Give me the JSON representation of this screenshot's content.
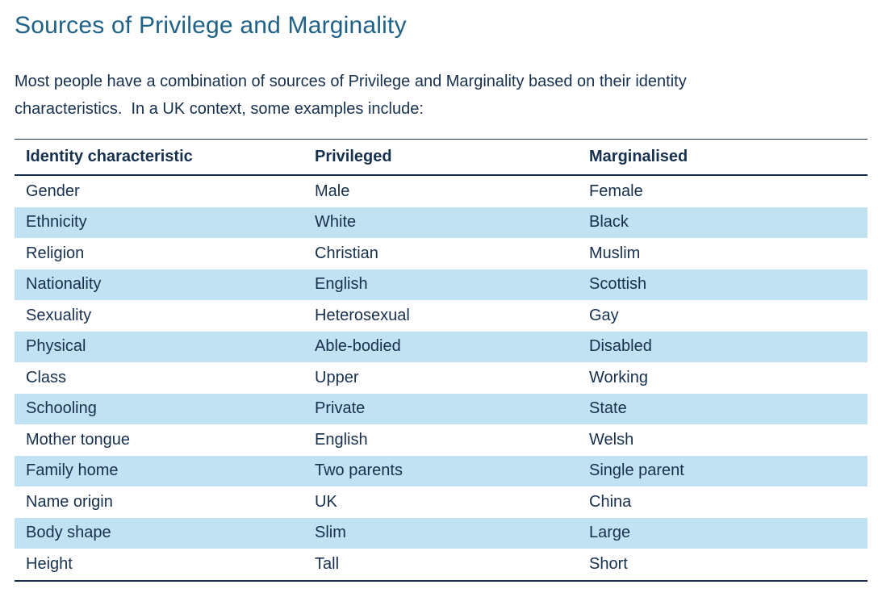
{
  "page": {
    "title": "Sources of Privilege and Marginality",
    "intro_lines": [
      "Most people have a combination of sources of Privilege and Marginality based on their identity",
      "characteristics.  In a UK context, some examples include:"
    ]
  },
  "colors": {
    "title_text": "#1F6287",
    "body_text": "#16304D",
    "row_highlight": "#C0E2F2",
    "table_border": "#16304D"
  },
  "table": {
    "columns": [
      "Identity characteristic",
      "Privileged",
      "Marginalised"
    ],
    "rows": [
      [
        "Gender",
        "Male",
        "Female"
      ],
      [
        "Ethnicity",
        "White",
        "Black"
      ],
      [
        "Religion",
        "Christian",
        "Muslim"
      ],
      [
        "Nationality",
        "English",
        "Scottish"
      ],
      [
        "Sexuality",
        "Heterosexual",
        "Gay"
      ],
      [
        "Physical",
        "Able-bodied",
        "Disabled"
      ],
      [
        "Class",
        "Upper",
        "Working"
      ],
      [
        "Schooling",
        "Private",
        "State"
      ],
      [
        "Mother tongue",
        "English",
        "Welsh"
      ],
      [
        "Family home",
        "Two parents",
        "Single parent"
      ],
      [
        "Name origin",
        "UK",
        "China"
      ],
      [
        "Body shape",
        "Slim",
        "Large"
      ],
      [
        "Height",
        "Tall",
        "Short"
      ]
    ]
  }
}
